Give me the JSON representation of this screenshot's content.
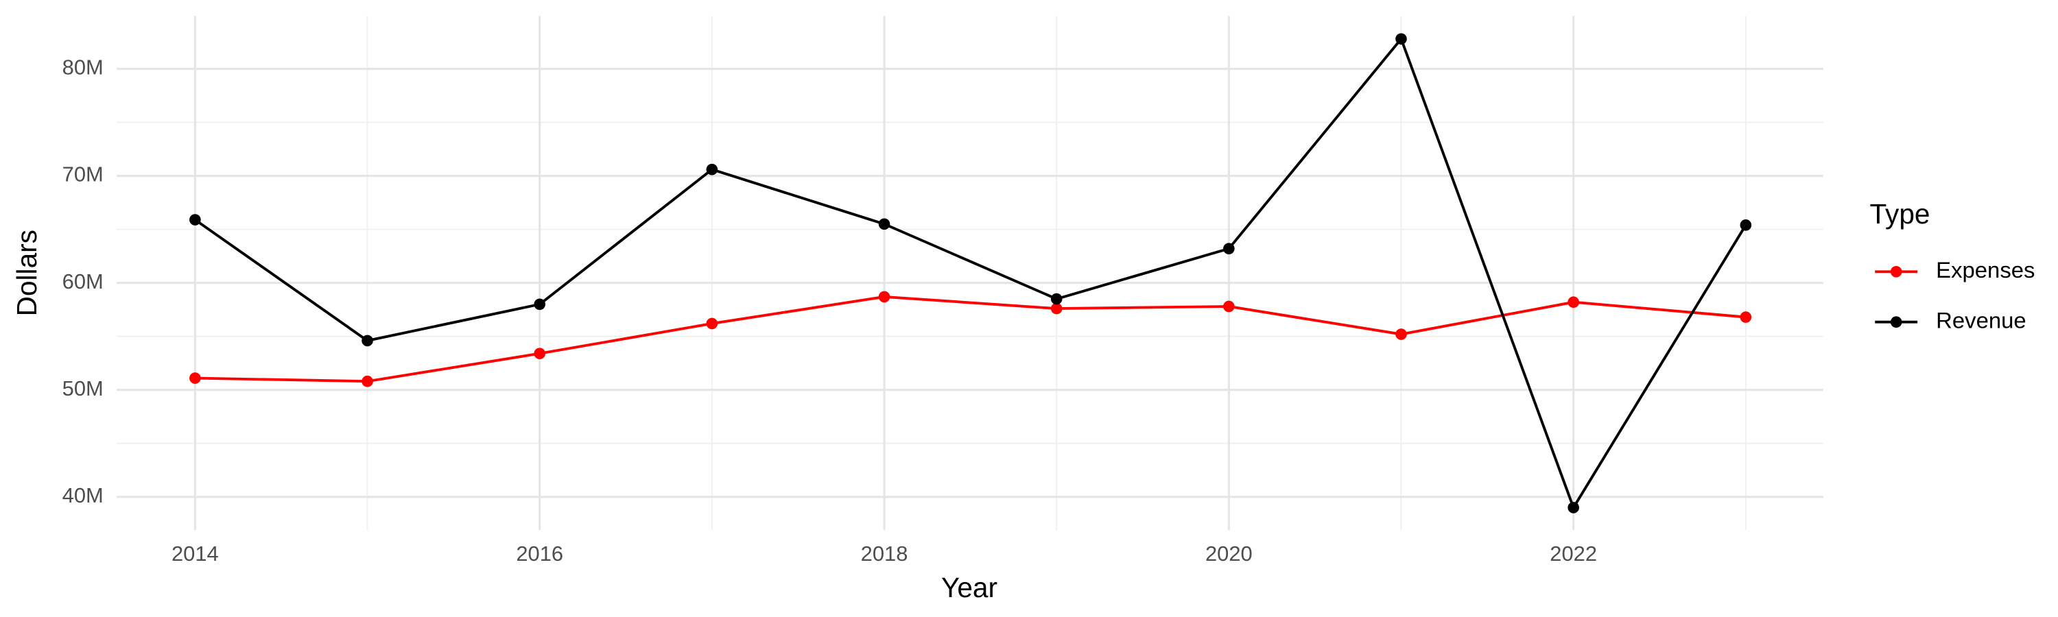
{
  "chart_data": {
    "type": "line",
    "x_label": "Year",
    "y_label": "Dollars",
    "x": [
      2014,
      2015,
      2016,
      2017,
      2018,
      2019,
      2020,
      2021,
      2022,
      2023
    ],
    "series": [
      {
        "name": "Expenses",
        "color": "#ff0000",
        "values": [
          51100000,
          50800000,
          53400000,
          56200000,
          58700000,
          57600000,
          57800000,
          55200000,
          58200000,
          56800000
        ]
      },
      {
        "name": "Revenue",
        "color": "#000000",
        "values": [
          65900000,
          54600000,
          58000000,
          70600000,
          65500000,
          58500000,
          63200000,
          82800000,
          39000000,
          65400000
        ]
      }
    ],
    "xlim": [
      2013.545,
      2023.45
    ],
    "xticks": [
      2014,
      2016,
      2018,
      2020,
      2022
    ],
    "ylim": [
      36900000,
      84950000
    ],
    "yticks": [
      {
        "value": 40000000,
        "label": "40M"
      },
      {
        "value": 50000000,
        "label": "50M"
      },
      {
        "value": 60000000,
        "label": "60M"
      },
      {
        "value": 70000000,
        "label": "70M"
      },
      {
        "value": 80000000,
        "label": "80M"
      }
    ],
    "grid": true,
    "legend_title": "Type",
    "legend_position": "right"
  }
}
